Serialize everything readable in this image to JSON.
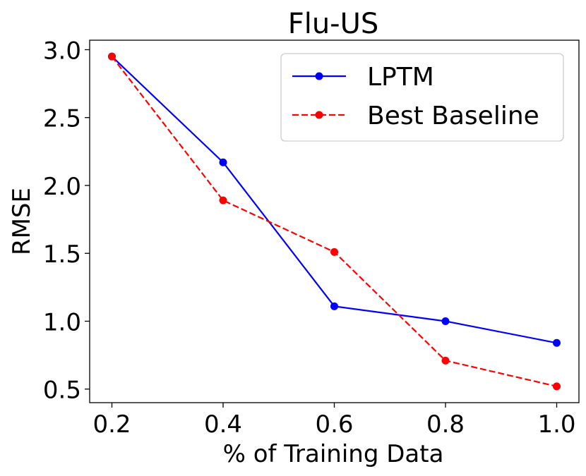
{
  "chart_data": {
    "type": "line",
    "title": "Flu-US",
    "xlabel": "% of Training Data",
    "ylabel": "RMSE",
    "x": [
      0.2,
      0.4,
      0.6,
      0.8,
      1.0
    ],
    "xticks": [
      "0.2",
      "0.4",
      "0.6",
      "0.8",
      "1.0"
    ],
    "yticks": [
      "0.5",
      "1.0",
      "1.5",
      "2.0",
      "2.5",
      "3.0"
    ],
    "xlim": [
      0.16,
      1.04
    ],
    "ylim": [
      0.4,
      3.07
    ],
    "grid": false,
    "legend_position": "top-right",
    "series": [
      {
        "name": "LPTM",
        "color": "#0000ff",
        "style": "solid",
        "marker": "circle",
        "values": [
          2.95,
          2.17,
          1.11,
          1.0,
          0.84
        ]
      },
      {
        "name": "Best Baseline",
        "color": "#ff0000",
        "style": "dashed",
        "marker": "circle",
        "values": [
          2.95,
          1.89,
          1.51,
          0.71,
          0.52
        ]
      }
    ]
  }
}
